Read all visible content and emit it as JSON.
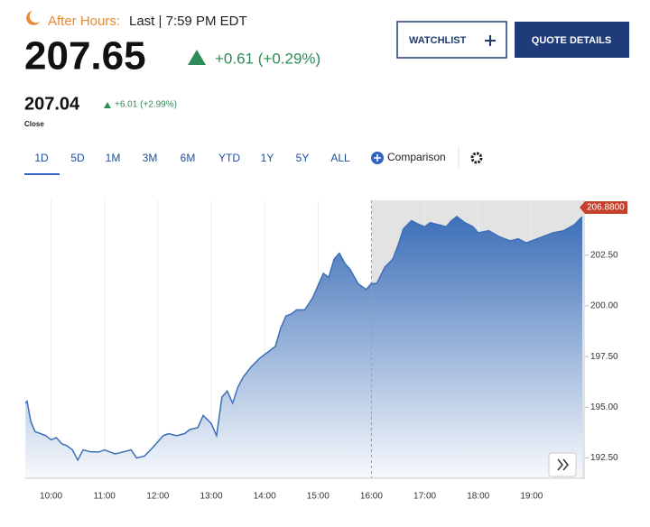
{
  "header": {
    "session": "After Hours:",
    "last": "Last | 7:59 PM EDT",
    "price": "207.65",
    "change": "+0.61 (+0.29%)",
    "close_price": "207.04",
    "close_change": "+6.01 (+2.99%)",
    "close_label": "Close",
    "watchlist": "WATCHLIST",
    "quote_details": "QUOTE DETAILS"
  },
  "tabs": [
    "1D",
    "5D",
    "1M",
    "3M",
    "6M",
    "YTD",
    "1Y",
    "5Y",
    "ALL"
  ],
  "comparison": "Comparison",
  "chart_data": {
    "type": "area",
    "color": "#3d6fb8",
    "last_label": "206.8800",
    "x": [
      9.52,
      9.55,
      9.62,
      9.7,
      9.8,
      9.9,
      10.0,
      10.1,
      10.2,
      10.3,
      10.4,
      10.5,
      10.6,
      10.75,
      10.9,
      11.0,
      11.1,
      11.2,
      11.35,
      11.5,
      11.6,
      11.75,
      11.9,
      12.0,
      12.1,
      12.2,
      12.35,
      12.5,
      12.6,
      12.75,
      12.85,
      13.0,
      13.1,
      13.2,
      13.3,
      13.4,
      13.5,
      13.6,
      13.75,
      13.9,
      14.0,
      14.1,
      14.2,
      14.3,
      14.4,
      14.5,
      14.6,
      14.75,
      14.9,
      15.0,
      15.1,
      15.2,
      15.3,
      15.4,
      15.5,
      15.6,
      15.75,
      15.9,
      16.0,
      16.1,
      16.25,
      16.4,
      16.5,
      16.6,
      16.75,
      16.9,
      17.0,
      17.1,
      17.25,
      17.4,
      17.5,
      17.6,
      17.75,
      17.9,
      18.0,
      18.2,
      18.4,
      18.6,
      18.75,
      18.9,
      19.0,
      19.2,
      19.4,
      19.6,
      19.8,
      19.95
    ],
    "values": [
      195.2,
      195.3,
      194.3,
      193.8,
      193.7,
      193.6,
      193.4,
      193.5,
      193.2,
      193.1,
      192.9,
      192.4,
      192.9,
      192.8,
      192.8,
      192.9,
      192.8,
      192.7,
      192.8,
      192.9,
      192.5,
      192.6,
      193.0,
      193.3,
      193.6,
      193.7,
      193.6,
      193.7,
      193.9,
      194.0,
      194.6,
      194.2,
      193.6,
      195.5,
      195.8,
      195.2,
      196.0,
      196.5,
      197.0,
      197.4,
      197.6,
      197.8,
      198.0,
      198.9,
      199.5,
      199.6,
      199.8,
      199.8,
      200.4,
      201.0,
      201.6,
      201.4,
      202.3,
      202.6,
      202.1,
      201.8,
      201.1,
      200.8,
      201.1,
      201.1,
      201.9,
      202.3,
      203.0,
      203.8,
      204.2,
      204.0,
      203.9,
      204.1,
      204.0,
      203.9,
      204.2,
      204.4,
      204.1,
      203.9,
      203.6,
      203.7,
      203.4,
      203.2,
      203.3,
      203.1,
      203.2,
      203.4,
      203.6,
      203.7,
      204.0,
      204.4
    ],
    "xlim": [
      9.5,
      20
    ],
    "ylim": [
      191.5,
      205.2
    ],
    "after_hours_start": 16,
    "xticks": [
      {
        "value": 10,
        "label": "10:00"
      },
      {
        "value": 11,
        "label": "11:00"
      },
      {
        "value": 12,
        "label": "12:00"
      },
      {
        "value": 13,
        "label": "13:00"
      },
      {
        "value": 14,
        "label": "14:00"
      },
      {
        "value": 15,
        "label": "15:00"
      },
      {
        "value": 16,
        "label": "16:00"
      },
      {
        "value": 17,
        "label": "17:00"
      },
      {
        "value": 18,
        "label": "18:00"
      },
      {
        "value": 19,
        "label": "19:00"
      }
    ],
    "yticks": [
      {
        "value": 192.5,
        "label": "192.50"
      },
      {
        "value": 195,
        "label": "195.00"
      },
      {
        "value": 197.5,
        "label": "197.50"
      },
      {
        "value": 200,
        "label": "200.00"
      },
      {
        "value": 202.5,
        "label": "202.50"
      }
    ],
    "grid": true
  }
}
